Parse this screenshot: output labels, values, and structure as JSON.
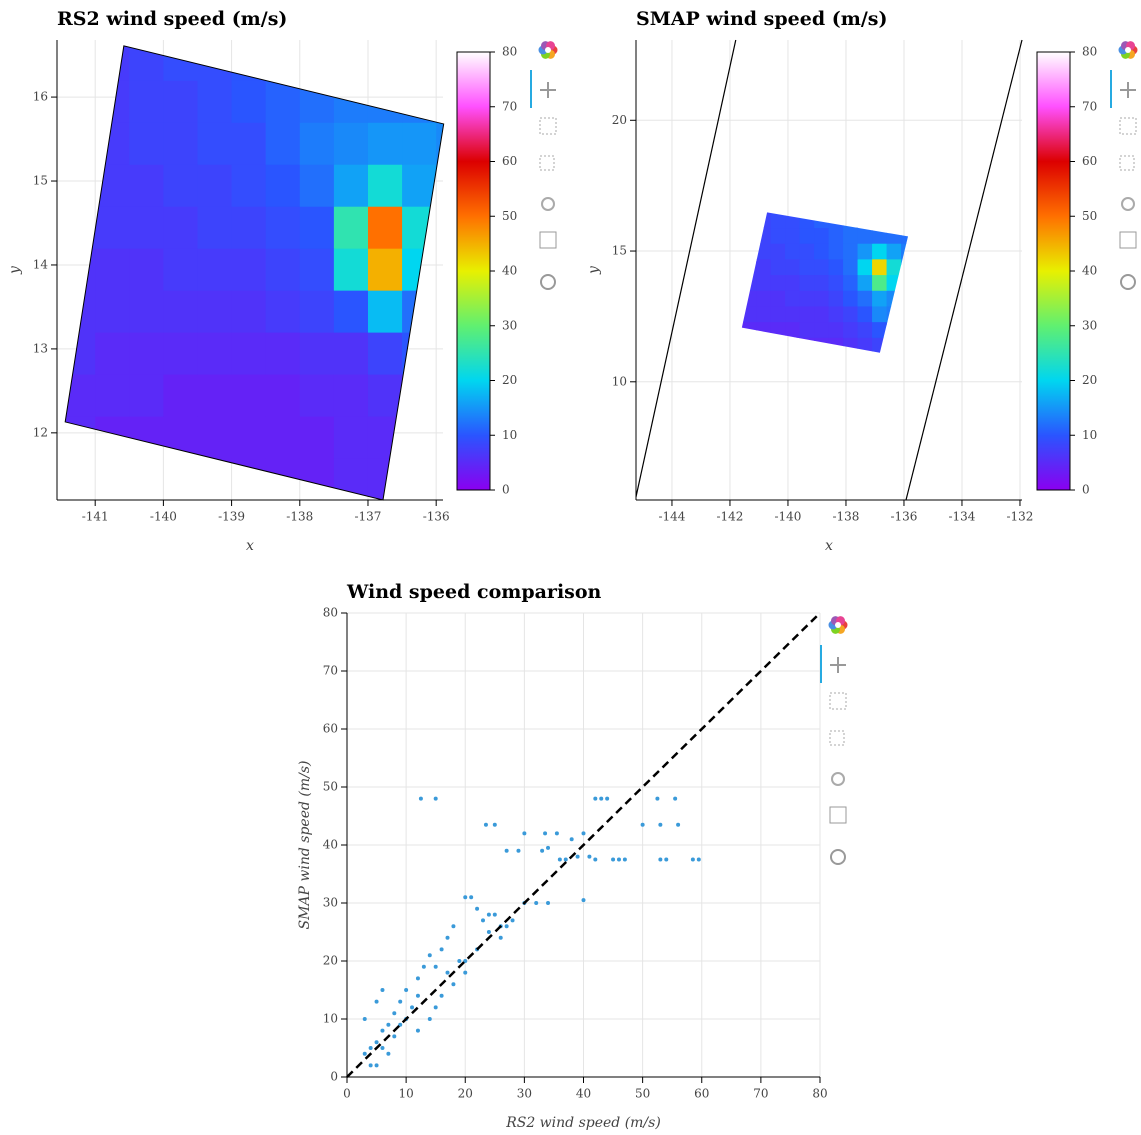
{
  "chart_data": [
    {
      "type": "heatmap",
      "title": "RS2 wind speed (m/s)",
      "x_label": "x",
      "y_label": "y",
      "xlim": [
        -141.56,
        -135.9
      ],
      "ylim": [
        11.2,
        16.68
      ],
      "xticks": [
        -141,
        -140,
        -139,
        -138,
        -137,
        -136
      ],
      "yticks": [
        12,
        13,
        14,
        15,
        16
      ],
      "grid": true,
      "x": [
        -141.25,
        -140.75,
        -140.25,
        -139.75,
        -139.25,
        -138.75,
        -138.25,
        -137.75,
        -137.25,
        -136.75,
        -136.25,
        -135.75
      ],
      "y": [
        11.45,
        11.95,
        12.45,
        12.95,
        13.45,
        13.95,
        14.45,
        14.95,
        15.45,
        15.95,
        16.45
      ],
      "z": [
        [
          4,
          4,
          4,
          4,
          4,
          4,
          4,
          4,
          5,
          5,
          5,
          5
        ],
        [
          5,
          4,
          4,
          4,
          4,
          4,
          4,
          4,
          5,
          5,
          6,
          6
        ],
        [
          5,
          5,
          5,
          4,
          4,
          4,
          4,
          5,
          5,
          6,
          7,
          7
        ],
        [
          6,
          5,
          5,
          5,
          5,
          5,
          5,
          6,
          6,
          8,
          10,
          10
        ],
        [
          6,
          6,
          6,
          6,
          6,
          6,
          7,
          8,
          10,
          18,
          12,
          11
        ],
        [
          6,
          6,
          6,
          7,
          7,
          7,
          8,
          9,
          22,
          45,
          20,
          14
        ],
        [
          7,
          7,
          7,
          7,
          8,
          8,
          9,
          10,
          25,
          50,
          22,
          15
        ],
        [
          7,
          7,
          7,
          8,
          8,
          9,
          10,
          12,
          16,
          22,
          16,
          14
        ],
        [
          7,
          7,
          8,
          8,
          9,
          9,
          11,
          13,
          14,
          15,
          15,
          14
        ],
        [
          7,
          7,
          8,
          8,
          9,
          10,
          11,
          12,
          13,
          13,
          13,
          13
        ],
        [
          7,
          7,
          8,
          9,
          9,
          10,
          11,
          12,
          12,
          12,
          12,
          12
        ]
      ],
      "footprint": {
        "x": [
          -140.58,
          -135.89,
          -136.78,
          -141.44
        ],
        "y": [
          16.61,
          15.68,
          11.2,
          12.13
        ]
      },
      "outline": true,
      "colorbar": {
        "clim": [
          0,
          80
        ],
        "ticks": [
          0,
          10,
          20,
          30,
          40,
          50,
          60,
          70,
          80
        ],
        "palette": [
          "#8a00f0",
          "#2a55ff",
          "#00d6f0",
          "#60f070",
          "#e8f000",
          "#ff7000",
          "#dc0000",
          "#ff50ff",
          "#ffffff"
        ]
      }
    },
    {
      "type": "heatmap",
      "title": "SMAP wind speed (m/s)",
      "x_label": "x",
      "y_label": "y",
      "xlim": [
        -145.24,
        -131.93
      ],
      "ylim": [
        5.48,
        23.07
      ],
      "xticks": [
        -144,
        -142,
        -140,
        -138,
        -136,
        -134,
        -132
      ],
      "yticks": [
        10,
        15,
        20
      ],
      "grid": true,
      "x": [
        -141.35,
        -140.85,
        -140.35,
        -139.85,
        -139.35,
        -138.85,
        -138.35,
        -137.85,
        -137.35,
        -136.85,
        -136.35,
        -135.85
      ],
      "y": [
        11.4,
        12.0,
        12.6,
        13.2,
        13.8,
        14.4,
        15.0,
        15.6,
        16.2
      ],
      "z": [
        [
          5,
          5,
          5,
          5,
          5,
          5,
          5,
          6,
          7,
          8,
          9,
          9
        ],
        [
          5,
          5,
          5,
          5,
          6,
          6,
          6,
          7,
          8,
          10,
          11,
          10
        ],
        [
          6,
          6,
          6,
          6,
          6,
          6,
          7,
          8,
          10,
          14,
          13,
          12
        ],
        [
          6,
          6,
          6,
          7,
          7,
          7,
          8,
          10,
          12,
          16,
          14,
          13
        ],
        [
          7,
          7,
          7,
          7,
          8,
          8,
          9,
          11,
          16,
          28,
          20,
          14
        ],
        [
          7,
          7,
          8,
          8,
          9,
          9,
          10,
          12,
          20,
          42,
          22,
          15
        ],
        [
          8,
          8,
          8,
          9,
          9,
          10,
          11,
          12,
          15,
          20,
          16,
          13
        ],
        [
          8,
          8,
          9,
          9,
          10,
          10,
          11,
          12,
          12,
          12,
          12,
          12
        ],
        [
          8,
          8,
          9,
          9,
          10,
          11,
          11,
          12,
          12,
          12,
          12,
          12
        ]
      ],
      "footprint": {
        "x": [
          -140.72,
          -135.86,
          -136.83,
          -141.59
        ],
        "y": [
          16.48,
          15.56,
          11.11,
          12.07
        ]
      },
      "outline": false,
      "swath_lines": [
        {
          "x": [
            -145.24,
            -141.8
          ],
          "y": [
            5.6,
            23.07
          ]
        },
        {
          "x": [
            -135.93,
            -131.93
          ],
          "y": [
            5.48,
            23.07
          ]
        }
      ],
      "colorbar": {
        "clim": [
          0,
          80
        ],
        "ticks": [
          0,
          10,
          20,
          30,
          40,
          50,
          60,
          70,
          80
        ],
        "palette": [
          "#8a00f0",
          "#2a55ff",
          "#00d6f0",
          "#60f070",
          "#e8f000",
          "#ff7000",
          "#dc0000",
          "#ff50ff",
          "#ffffff"
        ]
      }
    },
    {
      "type": "scatter",
      "title": "Wind speed comparison",
      "x_label": "RS2 wind speed (m/s)",
      "y_label": "SMAP wind speed (m/s)",
      "xlim": [
        0,
        80
      ],
      "ylim": [
        0,
        80
      ],
      "xticks": [
        0,
        10,
        20,
        30,
        40,
        50,
        60,
        70,
        80
      ],
      "yticks": [
        0,
        10,
        20,
        30,
        40,
        50,
        60,
        70,
        80
      ],
      "grid": true,
      "color": "#3a9ad9",
      "x": [
        12.5,
        15,
        23.5,
        25,
        30,
        33.5,
        35.5,
        38,
        40,
        42,
        43,
        44,
        50,
        52.5,
        53,
        55.5,
        56,
        45,
        46,
        47,
        53,
        54,
        58.5,
        59.5,
        40,
        34,
        33,
        34,
        29,
        27,
        36,
        37,
        39,
        41,
        42,
        20,
        21,
        25,
        28,
        30,
        32,
        22,
        18,
        17,
        14,
        15,
        12,
        10,
        9,
        8,
        7,
        6,
        5,
        4,
        3,
        4,
        5,
        3,
        5,
        6,
        12,
        14,
        15,
        16,
        17,
        18,
        19,
        20,
        22,
        24,
        26,
        27,
        23,
        13,
        11,
        9,
        8,
        10,
        6,
        7,
        12,
        16,
        20,
        24,
        26
      ],
      "values": [
        48,
        48,
        43.5,
        43.5,
        42,
        42,
        42,
        41,
        42,
        48,
        48,
        48,
        43.5,
        48,
        43.5,
        48,
        43.5,
        37.5,
        37.5,
        37.5,
        37.5,
        37.5,
        37.5,
        37.5,
        30.5,
        30,
        39,
        39.5,
        39,
        39,
        37.5,
        37.5,
        38,
        38,
        37.5,
        31,
        31,
        28,
        27,
        30,
        30,
        29,
        26,
        24,
        21,
        19,
        17,
        15,
        13,
        11,
        9,
        8,
        6,
        5,
        4,
        2,
        2,
        10,
        13,
        15,
        8,
        10,
        12,
        14,
        18,
        16,
        20,
        18,
        22,
        25,
        24,
        26,
        27,
        19,
        12,
        9,
        7,
        10,
        5,
        4,
        14,
        22,
        20,
        28,
        26
      ],
      "reference_line": {
        "x": [
          0,
          80
        ],
        "y": [
          0,
          80
        ]
      }
    }
  ]
}
